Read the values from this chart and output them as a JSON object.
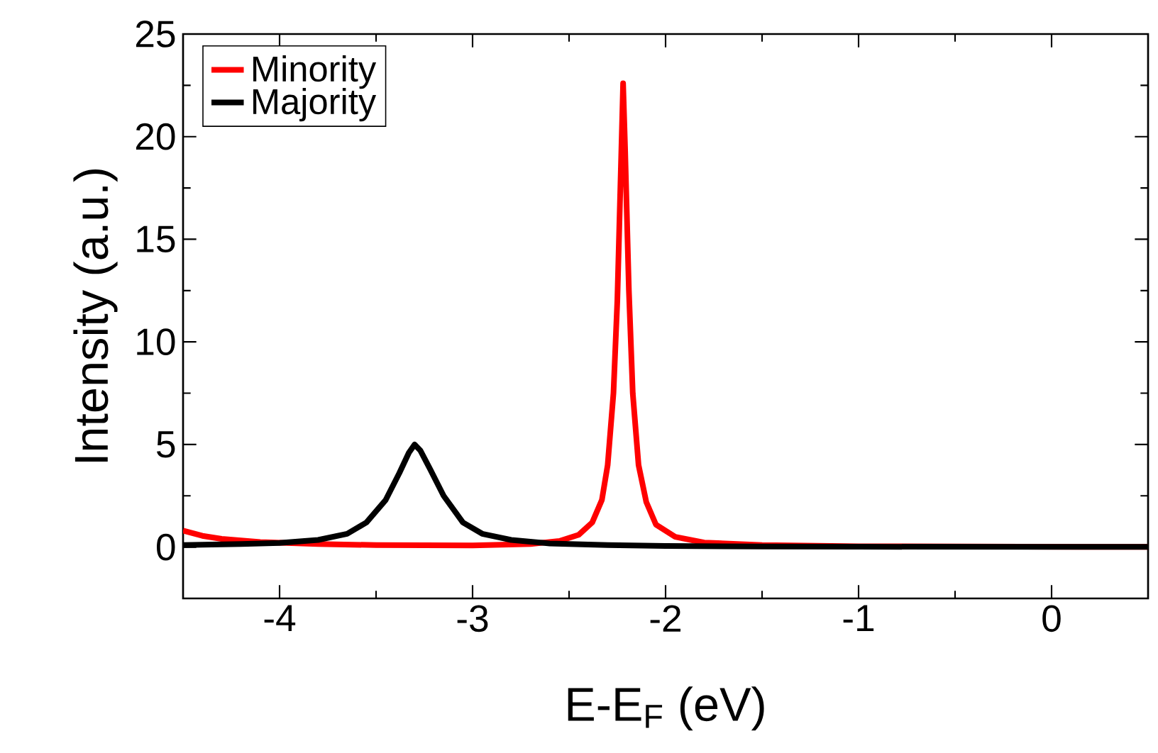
{
  "chart_data": {
    "type": "line",
    "xlabel": "E-E$_{F}$ (eV)",
    "ylabel": "Intensity (a.u.)",
    "xlim": [
      -4.5,
      0.5
    ],
    "ylim": [
      -2.5,
      25
    ],
    "xticks": [
      -4,
      -3,
      -2,
      -1,
      0
    ],
    "yticks": [
      0,
      5,
      10,
      15,
      20,
      25
    ],
    "legend": "top left",
    "marker": "none",
    "line_style": "solid",
    "series": [
      {
        "name": "Minority",
        "color": "#ff0000",
        "x": [
          -4.5,
          -4.4,
          -4.3,
          -4.1,
          -3.8,
          -3.5,
          -3.0,
          -2.7,
          -2.55,
          -2.45,
          -2.38,
          -2.33,
          -2.3,
          -2.27,
          -2.25,
          -2.23,
          -2.22,
          -2.21,
          -2.19,
          -2.17,
          -2.14,
          -2.1,
          -2.05,
          -1.95,
          -1.8,
          -1.5,
          -1.0,
          0.0,
          0.5
        ],
        "values": [
          0.8,
          0.55,
          0.4,
          0.25,
          0.15,
          0.1,
          0.08,
          0.15,
          0.3,
          0.6,
          1.2,
          2.3,
          4,
          7.5,
          12,
          19,
          22.6,
          19.5,
          12.5,
          7.5,
          4,
          2.2,
          1.1,
          0.5,
          0.22,
          0.1,
          0.04,
          null,
          0.01
        ]
      },
      {
        "name": "Majority",
        "color": "#000000",
        "x": [
          -4.5,
          -4.2,
          -4.0,
          -3.8,
          -3.65,
          -3.55,
          -3.45,
          -3.38,
          -3.33,
          -3.3,
          -3.27,
          -3.22,
          -3.15,
          -3.05,
          -2.95,
          -2.8,
          -2.6,
          -2.3,
          -2.0,
          -1.5,
          -1.0,
          0.0,
          0.5
        ],
        "values": [
          0.1,
          0.15,
          0.2,
          0.35,
          0.65,
          1.2,
          2.3,
          3.6,
          4.6,
          5.0,
          4.7,
          3.8,
          2.5,
          1.2,
          0.65,
          0.35,
          0.18,
          0.1,
          0.06,
          0.03,
          0.02,
          0.01,
          0.01
        ]
      }
    ]
  }
}
